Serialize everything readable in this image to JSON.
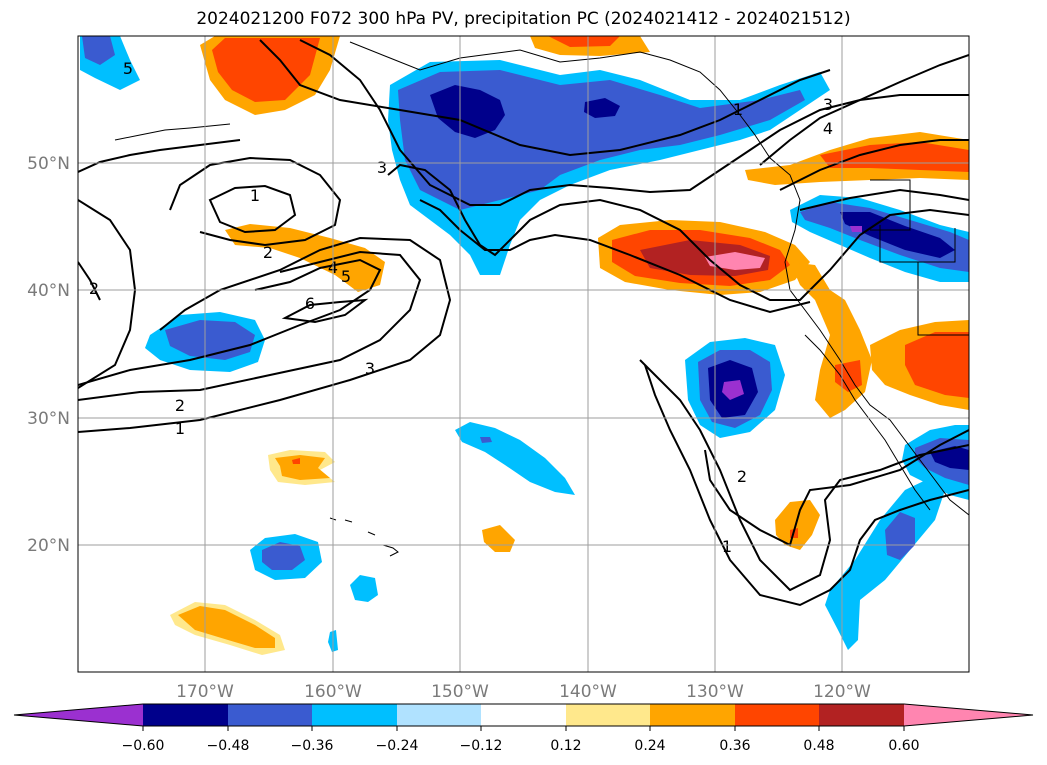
{
  "title": "2024021200 F072 300 hPa PV, precipitation PC (2024021412 - 2024021512)",
  "lat_labels": [
    "50°N",
    "40°N",
    "30°N",
    "20°N"
  ],
  "lon_labels": [
    "170°W",
    "160°W",
    "150°W",
    "140°W",
    "130°W",
    "120°W"
  ],
  "colorbar": {
    "ticks": [
      "−0.60",
      "−0.48",
      "−0.36",
      "−0.24",
      "−0.12",
      "0.12",
      "0.24",
      "0.36",
      "0.48",
      "0.60"
    ],
    "colors": [
      "#9b30d0",
      "#00008b",
      "#3a5bd0",
      "#00bfff",
      "#b0e2ff",
      "#ffffff",
      "#ffe88c",
      "#ffa500",
      "#ff4500",
      "#b22222",
      "#ff85b0"
    ]
  },
  "pv_contour_labels": [
    "1",
    "2",
    "3",
    "4",
    "5",
    "6",
    "1",
    "2",
    "3",
    "4",
    "5",
    "3",
    "1",
    "2",
    "1",
    "2"
  ],
  "map": {
    "grid": true,
    "projection": "lat-lon",
    "lat_range": [
      10,
      60
    ],
    "lon_range": [
      -180,
      -110
    ]
  }
}
